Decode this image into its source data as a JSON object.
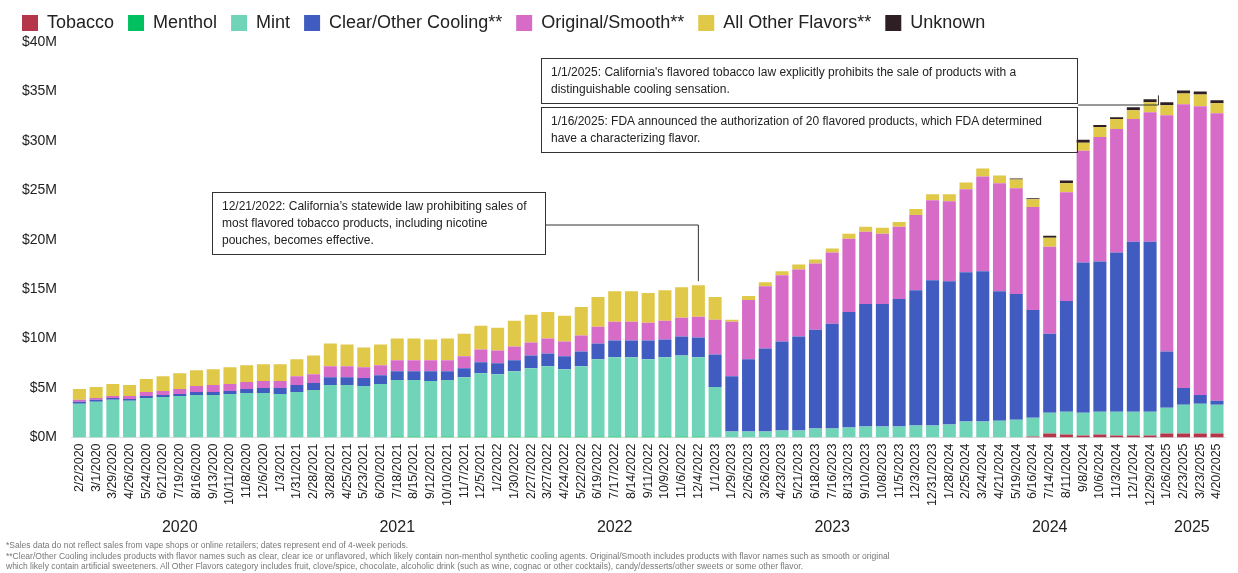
{
  "chart_data": {
    "type": "bar",
    "stacked": true,
    "legend": "top left",
    "grid": false,
    "categories": [
      "2/2/2020",
      "3/1/2020",
      "3/29/2020",
      "4/26/2020",
      "5/24/2020",
      "6/21/2020",
      "7/19/2020",
      "8/16/2020",
      "9/13/2020",
      "10/11/2020",
      "11/8/2020",
      "12/6/2020",
      "1/3/2021",
      "1/31/2021",
      "2/28/2021",
      "3/28/2021",
      "4/25/2021",
      "5/23/2021",
      "6/20/2021",
      "7/18/2021",
      "8/15/2021",
      "9/12/2021",
      "10/10/2021",
      "11/7/2021",
      "12/5/2021",
      "1/2/2022",
      "1/30/2022",
      "2/27/2022",
      "3/27/2022",
      "4/24/2022",
      "5/22/2022",
      "6/19/2022",
      "7/17/2022",
      "8/14/2022",
      "9/11/2022",
      "10/9/2022",
      "11/6/2022",
      "12/4/2022",
      "1/1/2023",
      "1/29/2023",
      "2/26/2023",
      "3/26/2023",
      "4/23/2023",
      "5/21/2023",
      "6/18/2023",
      "7/16/2023",
      "8/13/2023",
      "9/10/2023",
      "10/8/2023",
      "11/5/2023",
      "12/3/2023",
      "12/31/2023",
      "1/28/2024",
      "2/25/2024",
      "3/24/2024",
      "4/21/2024",
      "5/19/2024",
      "6/16/2024",
      "7/14/2024",
      "8/11/2024",
      "9/8/2024",
      "10/6/2024",
      "11/3/2024",
      "12/1/2024",
      "12/29/2024",
      "1/26/2025",
      "2/23/2025",
      "3/23/2025",
      "4/20/2025"
    ],
    "series": [
      {
        "name": "Tobacco",
        "color": "#b5364b",
        "values": [
          0,
          0,
          0,
          0,
          0,
          0,
          0,
          0,
          0,
          0,
          0,
          0,
          0,
          0,
          0,
          0,
          0,
          0,
          0,
          0,
          0,
          0,
          0,
          0,
          0,
          0,
          0,
          0,
          0,
          0,
          0,
          0,
          0,
          0,
          0,
          0,
          0,
          0,
          0,
          0,
          0,
          0,
          0,
          0,
          0,
          0,
          0,
          0,
          0,
          0,
          0,
          0,
          0,
          0,
          0,
          0,
          0,
          0.1,
          0.4,
          0.3,
          0.2,
          0.3,
          0.2,
          0.2,
          0.2,
          0.4,
          0.4,
          0.4,
          0.4
        ]
      },
      {
        "name": "Menthol",
        "color": "#00c060",
        "values": [
          0,
          0,
          0,
          0,
          0,
          0,
          0,
          0,
          0,
          0,
          0,
          0,
          0,
          0,
          0,
          0,
          0,
          0,
          0,
          0.1,
          0.1,
          0.1,
          0.1,
          0.1,
          0.1,
          0.1,
          0.1,
          0.1,
          0.1,
          0.1,
          0.1,
          0.1,
          0.1,
          0.1,
          0.1,
          0.1,
          0.1,
          0.1,
          0,
          0,
          0,
          0,
          0,
          0,
          0,
          0,
          0,
          0,
          0,
          0,
          0,
          0,
          0,
          0,
          0,
          0,
          0,
          0,
          0,
          0,
          0,
          0,
          0,
          0,
          0,
          0,
          0,
          0,
          0
        ]
      },
      {
        "name": "Mint",
        "color": "#70d4b8",
        "values": [
          3.4,
          3.6,
          3.8,
          3.7,
          4.0,
          4.1,
          4.2,
          4.3,
          4.3,
          4.4,
          4.5,
          4.5,
          4.4,
          4.6,
          4.8,
          5.3,
          5.3,
          5.2,
          5.4,
          5.7,
          5.7,
          5.6,
          5.7,
          6.0,
          6.4,
          6.3,
          6.6,
          6.9,
          7.1,
          6.8,
          7.1,
          7.8,
          8.0,
          8.0,
          7.8,
          8.0,
          8.2,
          8.0,
          5.1,
          0.6,
          0.6,
          0.6,
          0.7,
          0.7,
          0.9,
          0.9,
          1.0,
          1.1,
          1.1,
          1.1,
          1.2,
          1.2,
          1.3,
          1.6,
          1.6,
          1.7,
          1.8,
          1.9,
          2.1,
          2.3,
          2.3,
          2.3,
          2.4,
          2.4,
          2.4,
          2.6,
          2.9,
          3.0,
          2.9
        ]
      },
      {
        "name": "Clear/Other Cooling**",
        "color": "#405cc0",
        "values": [
          0.2,
          0.2,
          0.2,
          0.2,
          0.2,
          0.2,
          0.2,
          0.3,
          0.3,
          0.3,
          0.4,
          0.5,
          0.6,
          0.7,
          0.7,
          0.8,
          0.8,
          0.8,
          0.9,
          0.9,
          0.9,
          1.0,
          0.9,
          0.9,
          1.1,
          1.1,
          1.1,
          1.3,
          1.3,
          1.3,
          1.5,
          1.6,
          1.7,
          1.7,
          1.9,
          1.8,
          1.9,
          2.0,
          3.3,
          5.6,
          7.3,
          8.4,
          9.0,
          9.5,
          10.0,
          10.6,
          11.7,
          12.4,
          12.4,
          12.9,
          13.7,
          14.7,
          14.5,
          15.1,
          15.2,
          13.1,
          12.7,
          10.9,
          8.0,
          11.2,
          15.2,
          15.2,
          16.1,
          17.2,
          17.2,
          5.7,
          1.7,
          0.9,
          0.4
        ]
      },
      {
        "name": "Original/Smooth**",
        "color": "#d66cc8",
        "values": [
          0.2,
          0.2,
          0.2,
          0.3,
          0.4,
          0.4,
          0.5,
          0.6,
          0.7,
          0.7,
          0.7,
          0.7,
          0.7,
          0.9,
          0.9,
          1.1,
          1.1,
          1.1,
          1.0,
          1.1,
          1.1,
          1.1,
          1.1,
          1.2,
          1.3,
          1.3,
          1.4,
          1.3,
          1.5,
          1.5,
          1.6,
          1.7,
          1.9,
          1.9,
          1.8,
          1.9,
          1.9,
          2.1,
          3.5,
          5.5,
          6.0,
          6.3,
          6.7,
          6.8,
          6.7,
          7.2,
          7.4,
          7.3,
          7.1,
          7.3,
          7.6,
          8.1,
          8.1,
          8.4,
          9.6,
          10.9,
          10.7,
          10.4,
          8.8,
          11.0,
          11.3,
          12.6,
          12.5,
          12.4,
          13.1,
          23.9,
          28.7,
          29.2,
          29.1
        ]
      },
      {
        "name": "All Other Flavors**",
        "color": "#e0c848",
        "values": [
          1.1,
          1.1,
          1.2,
          1.1,
          1.3,
          1.5,
          1.6,
          1.6,
          1.6,
          1.7,
          1.7,
          1.7,
          1.7,
          1.7,
          1.9,
          2.3,
          2.2,
          2.0,
          2.1,
          2.2,
          2.2,
          2.1,
          2.2,
          2.3,
          2.4,
          2.3,
          2.6,
          2.8,
          2.7,
          2.6,
          2.9,
          3.0,
          3.1,
          3.1,
          3.0,
          3.1,
          3.1,
          3.2,
          2.3,
          0.2,
          0.4,
          0.4,
          0.4,
          0.5,
          0.4,
          0.4,
          0.5,
          0.5,
          0.6,
          0.5,
          0.6,
          0.6,
          0.7,
          0.7,
          0.8,
          0.8,
          0.9,
          0.8,
          0.9,
          0.9,
          0.8,
          1.0,
          1.0,
          0.9,
          1.0,
          1.0,
          1.1,
          1.2,
          1.0
        ]
      },
      {
        "name": "Unknown",
        "color": "#2e1f24",
        "values": [
          0,
          0,
          0,
          0,
          0,
          0,
          0,
          0,
          0,
          0,
          0,
          0,
          0,
          0,
          0,
          0,
          0,
          0,
          0,
          0,
          0,
          0,
          0,
          0,
          0,
          0,
          0,
          0,
          0,
          0,
          0,
          0,
          0,
          0,
          0,
          0,
          0,
          0,
          0,
          0,
          0,
          0,
          0,
          0,
          0,
          0,
          0,
          0,
          0,
          0,
          0,
          0,
          0,
          0,
          0,
          0,
          0.1,
          0.1,
          0.2,
          0.3,
          0.3,
          0.2,
          0.2,
          0.3,
          0.3,
          0.3,
          0.3,
          0.3,
          0.3
        ]
      }
    ],
    "ylim": [
      0,
      40
    ],
    "yticks": [
      {
        "value": 0,
        "label": "$0M"
      },
      {
        "value": 5,
        "label": "$5M"
      },
      {
        "value": 10,
        "label": "$10M"
      },
      {
        "value": 15,
        "label": "$15M"
      },
      {
        "value": 20,
        "label": "$20M"
      },
      {
        "value": 25,
        "label": "$25M"
      },
      {
        "value": 30,
        "label": "$30M"
      },
      {
        "value": 35,
        "label": "$35M"
      },
      {
        "value": 40,
        "label": "$40M"
      }
    ],
    "annotations": [
      "12/21/2022: California’s statewide law prohibiting sales of most flavored tobacco products, including nicotine pouches, becomes effective.",
      "1/1/2025: California's flavored tobacco law explicitly prohibits the sale of products with a distinguishable cooling sensation.",
      "1/16/2025: FDA announced the authorization of 20 flavored products, which FDA determined have a characterizing flavor.",
      "2020",
      "2021",
      "2022",
      "2023",
      "2024",
      "2025",
      "*Sales data do not reflect sales from vape shops or online retailers; dates represent end of 4-week periods.",
      "**Clear/Other Cooling includes products with flavor names such as clear, clear ice or unflavored, which likely contain non-menthol synthetic cooling agents. Original/Smooth includes products with flavor names such as smooth or original",
      "which likely contain artificial sweeteners. All Other Flavors category includes fruit, clove/spice, chocolate, alcoholic drink (such as wine, cognac or other cocktails), candy/desserts/other sweets or some other flavor."
    ]
  }
}
